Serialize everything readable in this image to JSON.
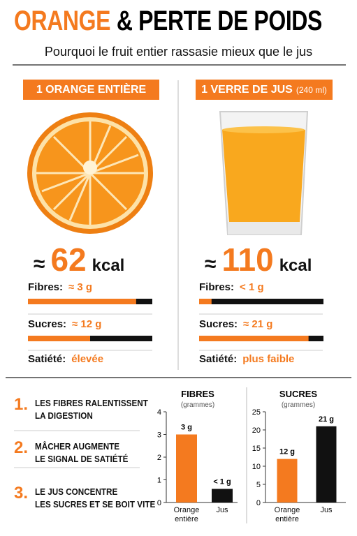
{
  "header": {
    "title_accent": "ORANGE",
    "title_rest": "& PERTE DE POIDS",
    "subtitle": "Pourquoi le fruit entier rassasie mieux que le jus"
  },
  "columns": [
    {
      "label": "1 ORANGE ENTIÈRE",
      "kcal_prefix": "≈",
      "kcal": 62,
      "kcal_unit": "kcal",
      "rows": [
        {
          "label": "Fibres:",
          "value": "≈ 3 g",
          "bar_fill": 0.87
        },
        {
          "label": "Sucres:",
          "value": "≈ 12 g",
          "bar_fill": 0.5
        },
        {
          "label": "Satiété:",
          "value": "élevée"
        }
      ]
    },
    {
      "label": "1 VERRE DE JUS",
      "label_note": "(240 ml)",
      "kcal_prefix": "≈",
      "kcal": 110,
      "kcal_unit": "kcal",
      "rows": [
        {
          "label": "Fibres:",
          "value": "< 1 g",
          "bar_fill": 0.1
        },
        {
          "label": "Sucres:",
          "value": "≈ 21 g",
          "bar_fill": 0.88
        },
        {
          "label": "Satiété:",
          "value": "plus faible"
        }
      ]
    }
  ],
  "points": [
    {
      "number": "1.",
      "lines": [
        "LES FIBRES RALENTISSENT",
        "LA DIGESTION"
      ]
    },
    {
      "number": "2.",
      "lines": [
        "MÂCHER AUGMENTE",
        "LE SIGNAL DE SATIÉTÉ"
      ]
    },
    {
      "number": "3.",
      "lines": [
        "LE JUS CONCENTRE",
        "LES SUCRES ET SE BOIT VITE"
      ]
    }
  ],
  "chart_data": [
    {
      "type": "bar",
      "title": "FIBRES",
      "subtitle": "(grammes)",
      "categories": [
        "Orange entière",
        "Jus"
      ],
      "values": [
        3,
        0.6
      ],
      "value_labels": [
        "3 g",
        "< 1 g"
      ],
      "colors": [
        "#f47a1f",
        "#111111"
      ],
      "ylim": [
        0,
        4
      ],
      "yticks": [
        0,
        1,
        2,
        3,
        4
      ]
    },
    {
      "type": "bar",
      "title": "SUCRES",
      "subtitle": "(grammes)",
      "categories": [
        "Orange entière",
        "Jus"
      ],
      "values": [
        12,
        21
      ],
      "value_labels": [
        "12 g",
        "21 g"
      ],
      "colors": [
        "#f47a1f",
        "#111111"
      ],
      "ylim": [
        0,
        25
      ],
      "yticks": [
        0,
        5,
        10,
        15,
        20,
        25
      ]
    }
  ]
}
